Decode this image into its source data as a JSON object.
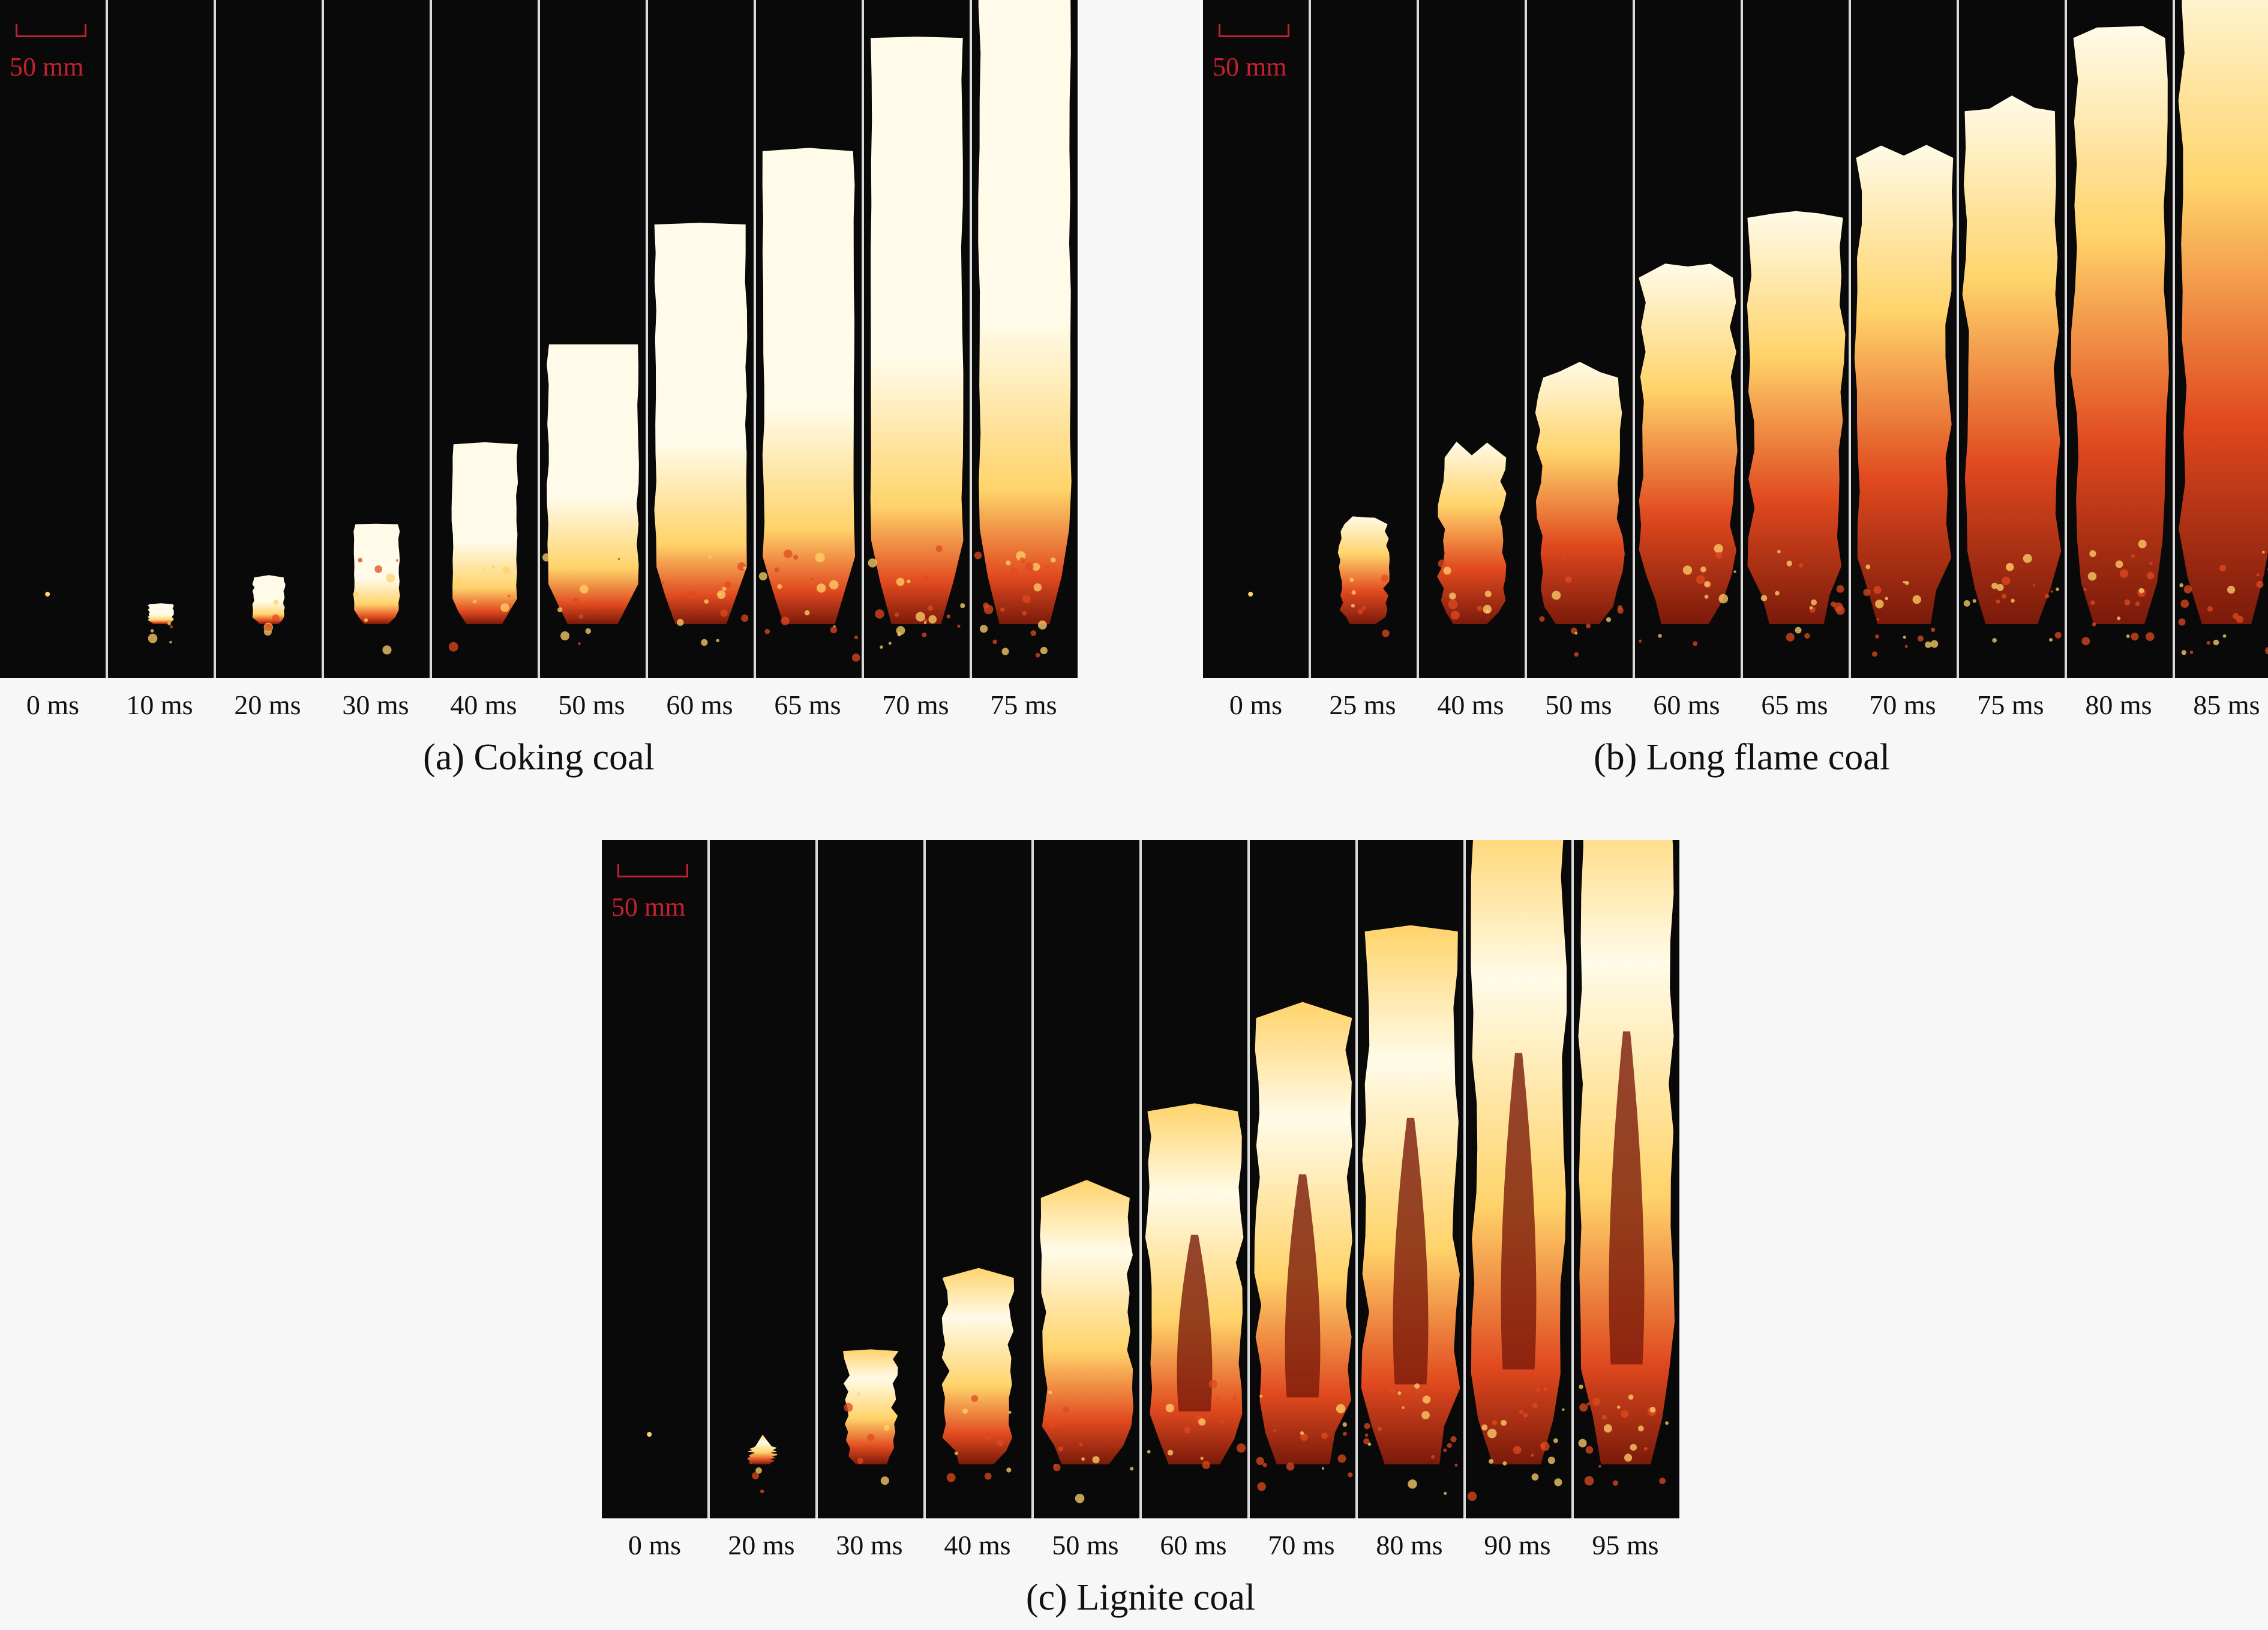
{
  "colors": {
    "background": "#f7f7f7",
    "frame_background": "#0a0909",
    "frame_divider": "#d9d9d9",
    "scale_bar": "#c4212e",
    "flame_core": "#fffbe8",
    "flame_mid": "#ffd36a",
    "flame_edge": "#e0491f",
    "flame_dark": "#7a1a0a"
  },
  "scale_label": "50 mm",
  "panels": [
    {
      "caption": "(a) Coking coal",
      "times": [
        "0 ms",
        "10 ms",
        "20 ms",
        "30 ms",
        "40 ms",
        "50 ms",
        "60 ms",
        "65 ms",
        "70 ms",
        "75 ms"
      ],
      "flame_heights": [
        0.0,
        0.03,
        0.07,
        0.15,
        0.27,
        0.42,
        0.6,
        0.71,
        0.88,
        1.0
      ],
      "flame_style": "solid"
    },
    {
      "caption": "(b) Long flame coal",
      "times": [
        "0 ms",
        "25 ms",
        "40 ms",
        "50 ms",
        "60 ms",
        "65 ms",
        "70 ms",
        "75 ms",
        "80 ms",
        "85 ms"
      ],
      "flame_heights": [
        0.0,
        0.15,
        0.25,
        0.37,
        0.52,
        0.61,
        0.7,
        0.77,
        0.88,
        1.0
      ],
      "flame_style": "ragged"
    },
    {
      "caption": "(c) Lignite coal",
      "times": [
        "0 ms",
        "20 ms",
        "30 ms",
        "40 ms",
        "50 ms",
        "60 ms",
        "70 ms",
        "80 ms",
        "90 ms",
        "95 ms"
      ],
      "flame_heights": [
        0.0,
        0.02,
        0.17,
        0.28,
        0.4,
        0.53,
        0.67,
        0.8,
        0.95,
        1.0
      ],
      "flame_style": "hollow"
    }
  ]
}
